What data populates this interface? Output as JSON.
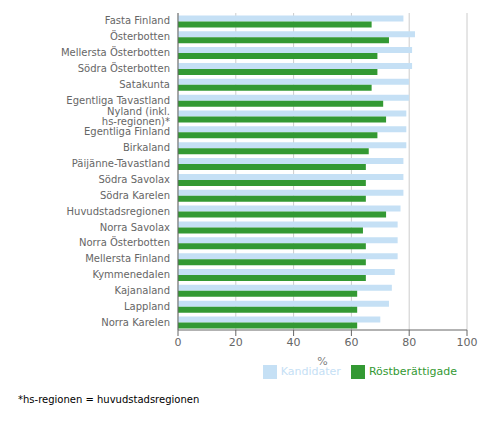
{
  "chart_data": {
    "type": "bar",
    "orientation": "horizontal",
    "categories": [
      "Fasta Finland",
      "Österbotten",
      "Mellersta Österbotten",
      "Södra Österbotten",
      "Satakunta",
      "Egentliga Tavastland",
      "Nyland (inkl. hs-regionen)*",
      "Egentliga Finland",
      "Birkaland",
      "Päijänne-Tavastland",
      "Södra Savolax",
      "Södra Karelen",
      "Huvudstadsregionen",
      "Norra Savolax",
      "Norra Österbotten",
      "Mellersta Finland",
      "Kymmenedalen",
      "Kajanaland",
      "Lappland",
      "Norra Karelen"
    ],
    "series": [
      {
        "name": "Kandidater",
        "color": "#c5e0f5",
        "values": [
          78,
          82,
          81,
          81,
          80,
          80,
          79,
          79,
          79,
          78,
          78,
          78,
          77,
          76,
          76,
          76,
          75,
          74,
          73,
          70
        ]
      },
      {
        "name": "Röstberättigade",
        "color": "#339933",
        "values": [
          67,
          73,
          69,
          69,
          67,
          71,
          72,
          69,
          66,
          65,
          65,
          65,
          72,
          64,
          65,
          65,
          65,
          62,
          62,
          62
        ]
      }
    ],
    "xlabel": "%",
    "xlim": [
      0,
      100
    ],
    "xticks": [
      0,
      20,
      40,
      60,
      80,
      100
    ],
    "grid": true,
    "legend": "lower right",
    "annotations": [
      "*hs-regionen = huvudstadsregionen"
    ]
  }
}
